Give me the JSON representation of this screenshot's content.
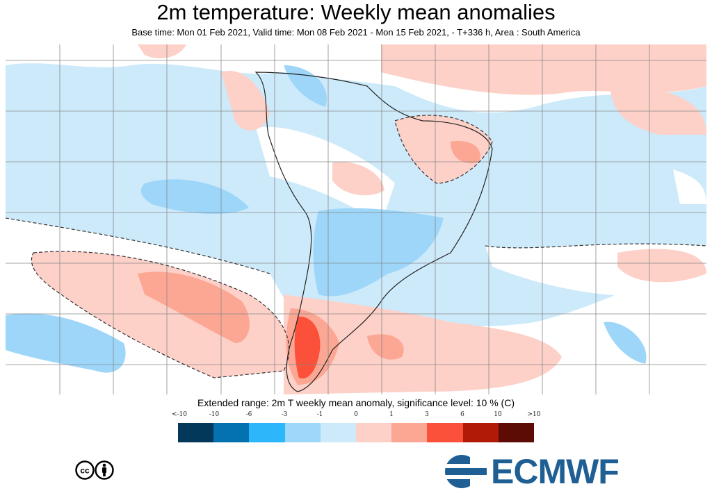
{
  "header": {
    "title": "2m temperature: Weekly mean anomalies",
    "subtitle": "Base time: Mon 01 Feb 2021, Valid time: Mon 08 Feb 2021 - Mon 15 Feb 2021, - T+336 h, Area : South America"
  },
  "map": {
    "area": "South America",
    "colors": {
      "ocean_neutral": "#cdeafb",
      "cool": "#9dd6f9",
      "warm": "#fdd0c8",
      "warmer": "#fca694",
      "warmest": "#fb503a",
      "near_zero": "#ffffff"
    }
  },
  "legend": {
    "title": "Extended range: 2m T weekly mean anomaly, significance level: 10 % (C)",
    "labels": [
      "<-10",
      "-10",
      "-6",
      "-3",
      "-1",
      "0",
      "1",
      "3",
      "6",
      "10",
      ">10"
    ],
    "colors": [
      "#02385a",
      "#0572b0",
      "#2eb6fb",
      "#9dd8fb",
      "#cdeafb",
      "#fdd0c8",
      "#fca694",
      "#fb503a",
      "#b01a06",
      "#5c0c04"
    ]
  },
  "footer": {
    "license_icon": "creative-commons-by-icon",
    "logo_text": "ECMWF"
  }
}
